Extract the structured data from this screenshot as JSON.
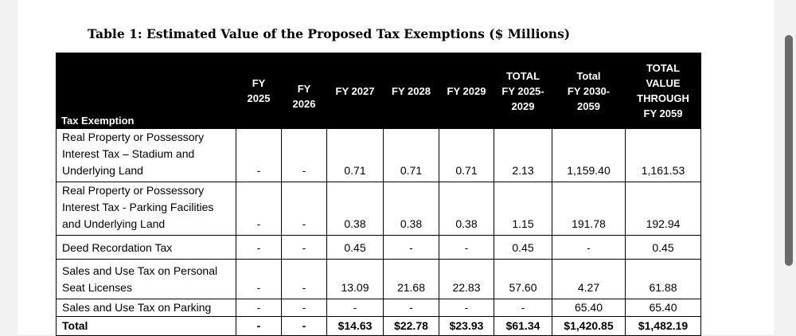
{
  "caption": "Table 1: Estimated Value of the Proposed Tax Exemptions ($ Millions)",
  "table": {
    "headers": [
      {
        "lines": [
          "Tax Exemption"
        ]
      },
      {
        "lines": [
          "FY",
          "2025"
        ]
      },
      {
        "lines": [
          "FY",
          "2026"
        ]
      },
      {
        "lines": [
          "FY 2027"
        ]
      },
      {
        "lines": [
          "FY 2028"
        ]
      },
      {
        "lines": [
          "FY 2029"
        ]
      },
      {
        "lines": [
          "TOTAL",
          "FY 2025-",
          "2029"
        ]
      },
      {
        "lines": [
          "Total",
          "FY 2030-",
          "2059"
        ]
      },
      {
        "lines": [
          "TOTAL",
          "VALUE",
          "THROUGH",
          "FY 2059"
        ]
      }
    ],
    "rows": [
      {
        "label": [
          "Real Property or Possessory",
          "Interest Tax – Stadium and",
          "Underlying Land"
        ],
        "values": [
          "-",
          "-",
          "0.71",
          "0.71",
          "0.71",
          "2.13",
          "1,159.40",
          "1,161.53"
        ]
      },
      {
        "label": [
          "Real Property or Possessory",
          "Interest Tax - Parking Facilities",
          "and Underlying Land"
        ],
        "values": [
          "-",
          "-",
          "0.38",
          "0.38",
          "0.38",
          "1.15",
          "191.78",
          "192.94"
        ]
      },
      {
        "label": [
          "Deed Recordation Tax"
        ],
        "values": [
          "-",
          "-",
          "0.45",
          "-",
          "-",
          "0.45",
          "-",
          "0.45"
        ]
      },
      {
        "label": [
          "Sales and Use Tax on Personal",
          "Seat Licenses"
        ],
        "values": [
          "-",
          "-",
          "13.09",
          "21.68",
          "22.83",
          "57.60",
          "4.27",
          "61.88"
        ]
      },
      {
        "label": [
          "Sales and Use Tax on Parking"
        ],
        "values": [
          "-",
          "-",
          "-",
          "-",
          "-",
          "-",
          "65.40",
          "65.40"
        ]
      }
    ],
    "total": {
      "label": "Total",
      "values": [
        "-",
        "-",
        "$14.63",
        "$22.78",
        "$23.93",
        "$61.34",
        "$1,420.85",
        "$1,482.19"
      ]
    }
  }
}
